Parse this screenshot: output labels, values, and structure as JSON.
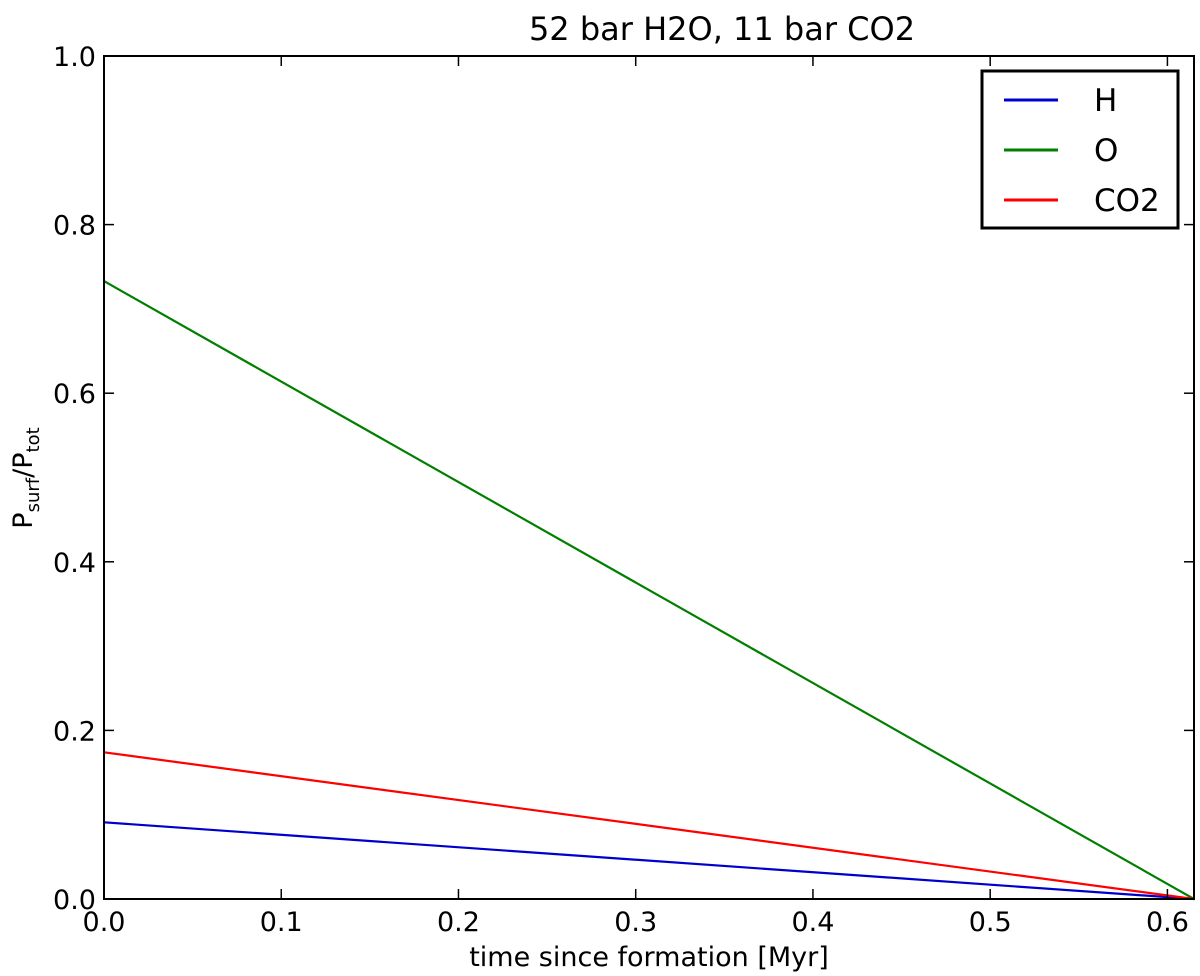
{
  "chart_data": {
    "type": "line",
    "title": "52 bar H2O, 11 bar CO2",
    "xlabel": "time since formation [Myr]",
    "ylabel": {
      "main1": "P",
      "sub1": "surf",
      "slash": "/",
      "main2": "P",
      "sub2": "tot"
    },
    "xlim": [
      0.0,
      0.615
    ],
    "ylim": [
      0.0,
      1.0
    ],
    "xticks": [
      0.0,
      0.1,
      0.2,
      0.3,
      0.4,
      0.5,
      0.6
    ],
    "xtick_labels": [
      "0.0",
      "0.1",
      "0.2",
      "0.3",
      "0.4",
      "0.5",
      "0.6"
    ],
    "yticks": [
      0.0,
      0.2,
      0.4,
      0.6,
      0.8,
      1.0
    ],
    "ytick_labels": [
      "0.0",
      "0.2",
      "0.4",
      "0.6",
      "0.8",
      "1.0"
    ],
    "grid": false,
    "legend_position": "top-right",
    "series": [
      {
        "name": "H",
        "color": "#0000cc",
        "x": [
          0.0,
          0.615
        ],
        "y": [
          0.091,
          0.0
        ]
      },
      {
        "name": "O",
        "color": "#007f00",
        "x": [
          0.0,
          0.615
        ],
        "y": [
          0.733,
          0.0
        ]
      },
      {
        "name": "CO2",
        "color": "#ff0000",
        "x": [
          0.0,
          0.615
        ],
        "y": [
          0.174,
          0.0
        ]
      }
    ]
  }
}
